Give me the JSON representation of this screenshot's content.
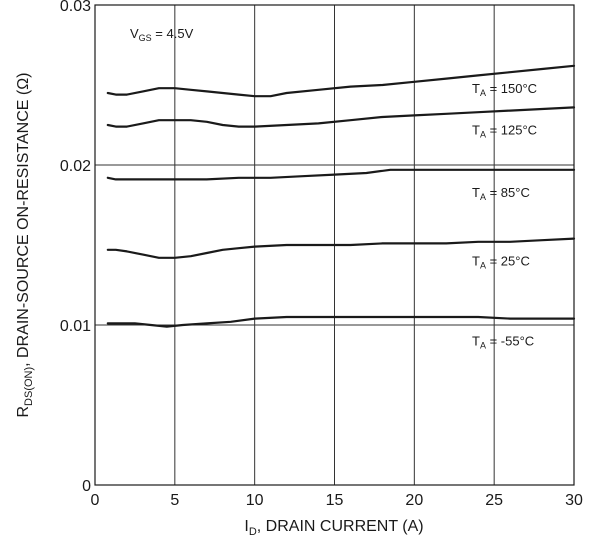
{
  "chart_data": {
    "type": "line",
    "xlabel": {
      "main": "I",
      "sub": "D",
      "rest": ", DRAIN CURRENT (A)"
    },
    "ylabel": {
      "main": "R",
      "sub": "DS(ON)",
      "rest": ",   DRAIN-SOURCE ON-RESISTANCE (Ω)"
    },
    "xlim": [
      0,
      30
    ],
    "ylim": [
      0,
      0.03
    ],
    "x_ticks": [
      0,
      5,
      10,
      15,
      20,
      25,
      30
    ],
    "x_tick_labels": [
      "0",
      "5",
      "10",
      "15",
      "20",
      "25",
      "30"
    ],
    "y_ticks": [
      0,
      0.01,
      0.02,
      0.03
    ],
    "y_tick_labels": [
      "0",
      "0.01",
      "0.02",
      "0.03"
    ],
    "grid": true,
    "annotation": {
      "main": "V",
      "sub": "GS",
      "rest": " = 4.5V"
    },
    "series": [
      {
        "name": "T_A = 150°C",
        "label": {
          "main": "T",
          "sub": "A",
          "rest": " = 150°C"
        },
        "x": [
          0.8,
          1.3,
          2,
          3,
          4,
          5,
          6,
          7,
          8,
          9,
          10,
          11,
          12,
          14,
          16,
          18,
          20,
          22,
          24,
          26,
          28,
          30
        ],
        "y": [
          0.0245,
          0.0244,
          0.0244,
          0.0246,
          0.0248,
          0.0248,
          0.0247,
          0.0246,
          0.0245,
          0.0244,
          0.0243,
          0.0243,
          0.0245,
          0.0247,
          0.0249,
          0.025,
          0.0252,
          0.0254,
          0.0256,
          0.0258,
          0.026,
          0.0262
        ]
      },
      {
        "name": "T_A = 125°C",
        "label": {
          "main": "T",
          "sub": "A",
          "rest": " = 125°C"
        },
        "x": [
          0.8,
          1.3,
          2,
          3,
          4,
          5,
          6,
          7,
          8,
          9,
          10,
          12,
          14,
          16,
          18,
          20,
          22,
          24,
          26,
          28,
          30
        ],
        "y": [
          0.0225,
          0.0224,
          0.0224,
          0.0226,
          0.0228,
          0.0228,
          0.0228,
          0.0227,
          0.0225,
          0.0224,
          0.0224,
          0.0225,
          0.0226,
          0.0228,
          0.023,
          0.0231,
          0.0232,
          0.0233,
          0.0234,
          0.0235,
          0.0236
        ]
      },
      {
        "name": "T_A = 85°C",
        "label": {
          "main": "T",
          "sub": "A",
          "rest": " = 85°C"
        },
        "x": [
          0.8,
          1.3,
          3,
          5,
          7,
          9,
          11,
          13,
          15,
          17,
          18.5,
          20,
          22,
          25,
          28,
          30
        ],
        "y": [
          0.0192,
          0.0191,
          0.0191,
          0.0191,
          0.0191,
          0.0192,
          0.0192,
          0.0193,
          0.0194,
          0.0195,
          0.0197,
          0.0197,
          0.0197,
          0.0197,
          0.0197,
          0.0197
        ]
      },
      {
        "name": "T_A = 25°C",
        "label": {
          "main": "T",
          "sub": "A",
          "rest": " = 25°C"
        },
        "x": [
          0.8,
          1.3,
          2,
          3,
          4,
          5,
          6,
          7,
          8,
          9,
          10,
          12,
          14,
          16,
          18,
          20,
          22,
          24,
          26,
          28,
          30
        ],
        "y": [
          0.0147,
          0.0147,
          0.0146,
          0.0144,
          0.0142,
          0.0142,
          0.0143,
          0.0145,
          0.0147,
          0.0148,
          0.0149,
          0.015,
          0.015,
          0.015,
          0.0151,
          0.0151,
          0.0151,
          0.0152,
          0.0152,
          0.0153,
          0.0154
        ]
      },
      {
        "name": "T_A = -55°C",
        "label": {
          "main": "T",
          "sub": "A",
          "rest": " = -55°C"
        },
        "x": [
          0.8,
          1.5,
          2.5,
          3.5,
          4.5,
          5.5,
          7,
          8.5,
          10,
          12,
          14,
          16,
          18,
          20,
          22,
          24,
          26,
          28,
          30
        ],
        "y": [
          0.0101,
          0.0101,
          0.0101,
          0.01,
          0.0099,
          0.01,
          0.0101,
          0.0102,
          0.0104,
          0.0105,
          0.0105,
          0.0105,
          0.0105,
          0.0105,
          0.0105,
          0.0105,
          0.0104,
          0.0104,
          0.0104
        ]
      }
    ]
  }
}
